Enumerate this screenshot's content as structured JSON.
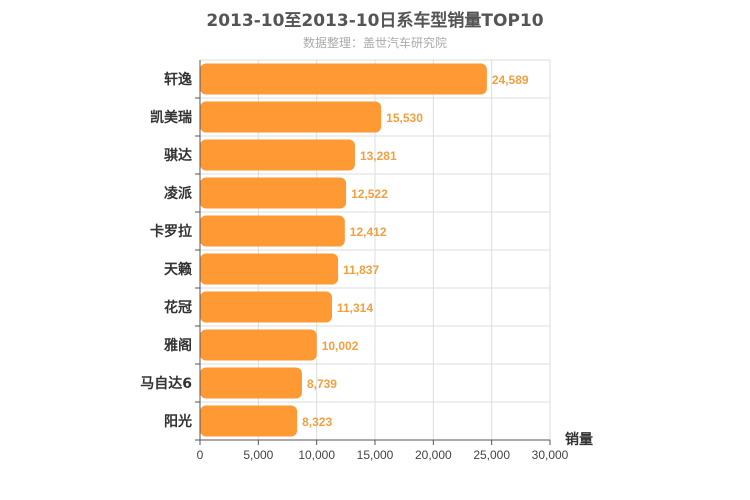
{
  "chart_data": {
    "type": "bar",
    "orientation": "horizontal",
    "title": "2013-10至2013-10日系车型销量TOP10",
    "subtitle": "数据整理：盖世汽车研究院",
    "categories": [
      "轩逸",
      "凯美瑞",
      "骐达",
      "凌派",
      "卡罗拉",
      "天籁",
      "花冠",
      "雅阁",
      "马自达6",
      "阳光"
    ],
    "values": [
      24589,
      15530,
      13281,
      12522,
      12412,
      11837,
      11314,
      10002,
      8739,
      8323
    ],
    "value_labels": [
      "24,589",
      "15,530",
      "13,281",
      "12,522",
      "12,412",
      "11,837",
      "11,314",
      "10,002",
      "8,739",
      "8,323"
    ],
    "xlabel": "销量",
    "ylabel": "",
    "xlim": [
      0,
      30000
    ],
    "ticks": [
      0,
      5000,
      10000,
      15000,
      20000,
      25000,
      30000
    ],
    "tick_labels": [
      "0",
      "5,000",
      "10,000",
      "15,000",
      "20,000",
      "25,000",
      "30,000"
    ],
    "grid": true,
    "legend": "none",
    "bar_color": "#ff9933",
    "label_color": "#f0a040"
  }
}
